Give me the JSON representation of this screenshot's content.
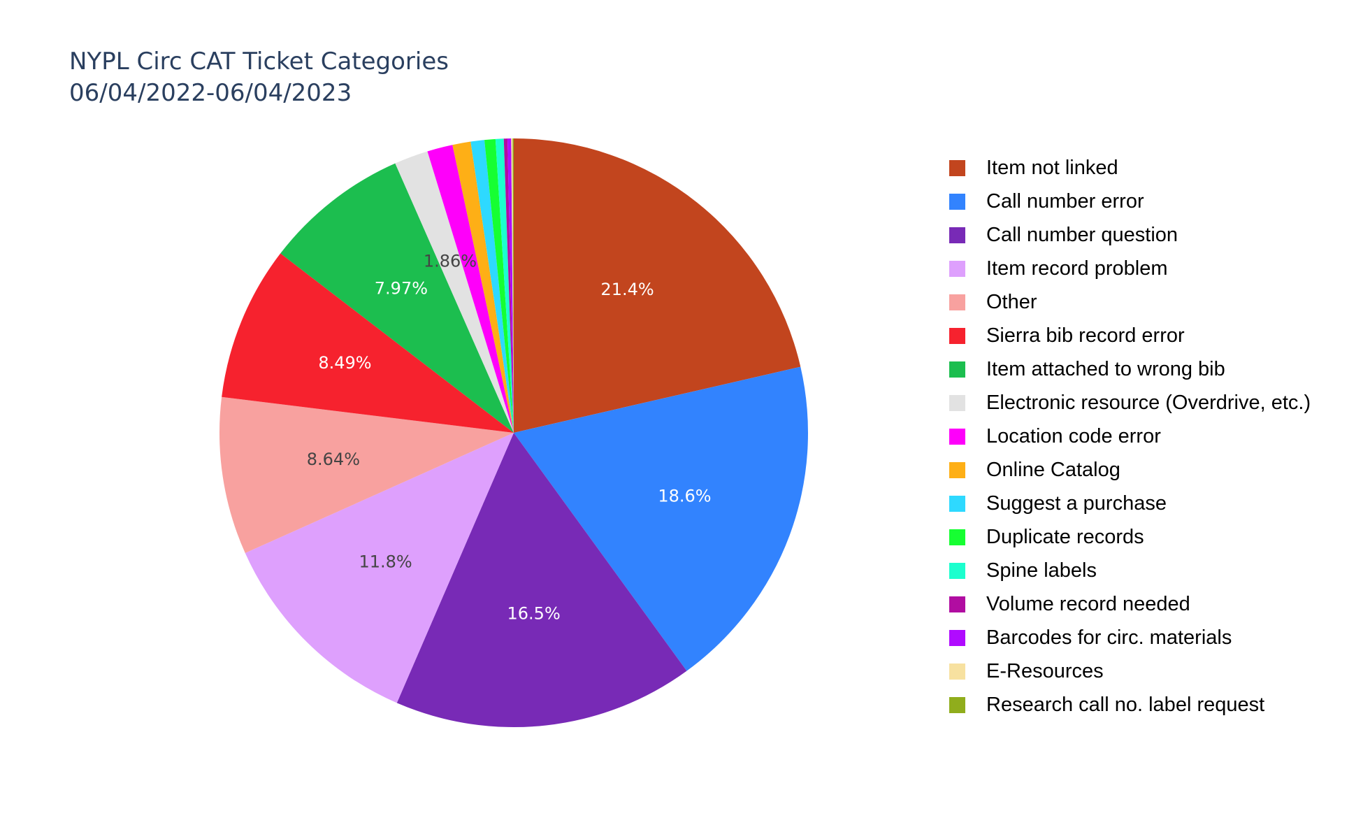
{
  "chart_data": {
    "type": "pie",
    "title": "NYPL Circ CAT Ticket Categories",
    "subtitle": "06/04/2022-06/04/2023",
    "legend_position": "right",
    "slices": [
      {
        "name": "Item not linked",
        "value": 21.4,
        "label": "21.4%",
        "color": "#c2451e"
      },
      {
        "name": "Call number error",
        "value": 18.6,
        "label": "18.6%",
        "color": "#3283fe"
      },
      {
        "name": "Call number question",
        "value": 16.5,
        "label": "16.5%",
        "color": "#782ab6"
      },
      {
        "name": "Item record problem",
        "value": 11.8,
        "label": "11.8%",
        "color": "#dea0fd"
      },
      {
        "name": "Other",
        "value": 8.64,
        "label": "8.64%",
        "color": "#f8a19f"
      },
      {
        "name": "Sierra bib record error",
        "value": 8.49,
        "label": "8.49%",
        "color": "#f6222e"
      },
      {
        "name": "Item attached to wrong bib",
        "value": 7.97,
        "label": "7.97%",
        "color": "#1cbe4f"
      },
      {
        "name": "Electronic resource (Overdrive, etc.)",
        "value": 1.86,
        "label": "1.86%",
        "color": "#e2e2e2"
      },
      {
        "name": "Location code error",
        "value": 1.4,
        "label": "",
        "color": "#fe00fa"
      },
      {
        "name": "Online Catalog",
        "value": 1.0,
        "label": "",
        "color": "#feaf16"
      },
      {
        "name": "Suggest a purchase",
        "value": 0.75,
        "label": "",
        "color": "#2ed9ff"
      },
      {
        "name": "Duplicate records",
        "value": 0.6,
        "label": "",
        "color": "#16ff32"
      },
      {
        "name": "Spine labels",
        "value": 0.45,
        "label": "",
        "color": "#1cffce"
      },
      {
        "name": "Volume record needed",
        "value": 0.2,
        "label": "",
        "color": "#b10da1"
      },
      {
        "name": "Barcodes for circ. materials",
        "value": 0.2,
        "label": "",
        "color": "#b00bff"
      },
      {
        "name": "E-Resources",
        "value": 0.08,
        "label": "",
        "color": "#f7e1a0"
      },
      {
        "name": "Research call no. label request",
        "value": 0.06,
        "label": "",
        "color": "#90ad1c"
      }
    ]
  }
}
